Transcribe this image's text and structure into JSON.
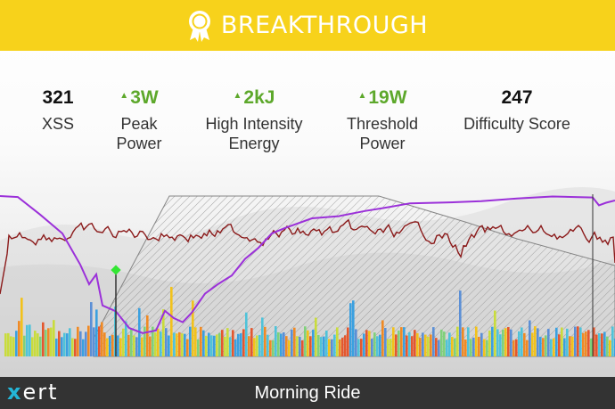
{
  "banner": {
    "title": "BREAKTHROUGH",
    "color": "#f7d21b",
    "icon": "award-ribbon-icon"
  },
  "metrics": [
    {
      "id": "xss",
      "value": "321",
      "label_lines": [
        "XSS"
      ],
      "trend": "none"
    },
    {
      "id": "peak-power",
      "value": "3W",
      "label_lines": [
        "Peak",
        "Power"
      ],
      "trend": "up"
    },
    {
      "id": "high-intensity-energy",
      "value": "2kJ",
      "label_lines": [
        "High Intensity",
        "Energy"
      ],
      "trend": "up"
    },
    {
      "id": "threshold-power",
      "value": "19W",
      "label_lines": [
        "Threshold",
        "Power"
      ],
      "trend": "up"
    },
    {
      "id": "difficulty-score",
      "value": "247",
      "label_lines": [
        "Difficulty Score"
      ],
      "trend": "none"
    }
  ],
  "colors": {
    "trend_up": "#5da82b",
    "power_line": "#8b1a1a",
    "training_load_line": "#9b30d9",
    "breakthrough_marker": "#33e633"
  },
  "chart": {
    "type": "ride-power-profile",
    "series": [
      "power",
      "mpa",
      "bars"
    ],
    "marker": "breakthrough-point"
  },
  "footer": {
    "logo_accent": "x",
    "logo_rest": "ert",
    "ride_name": "Morning Ride"
  }
}
